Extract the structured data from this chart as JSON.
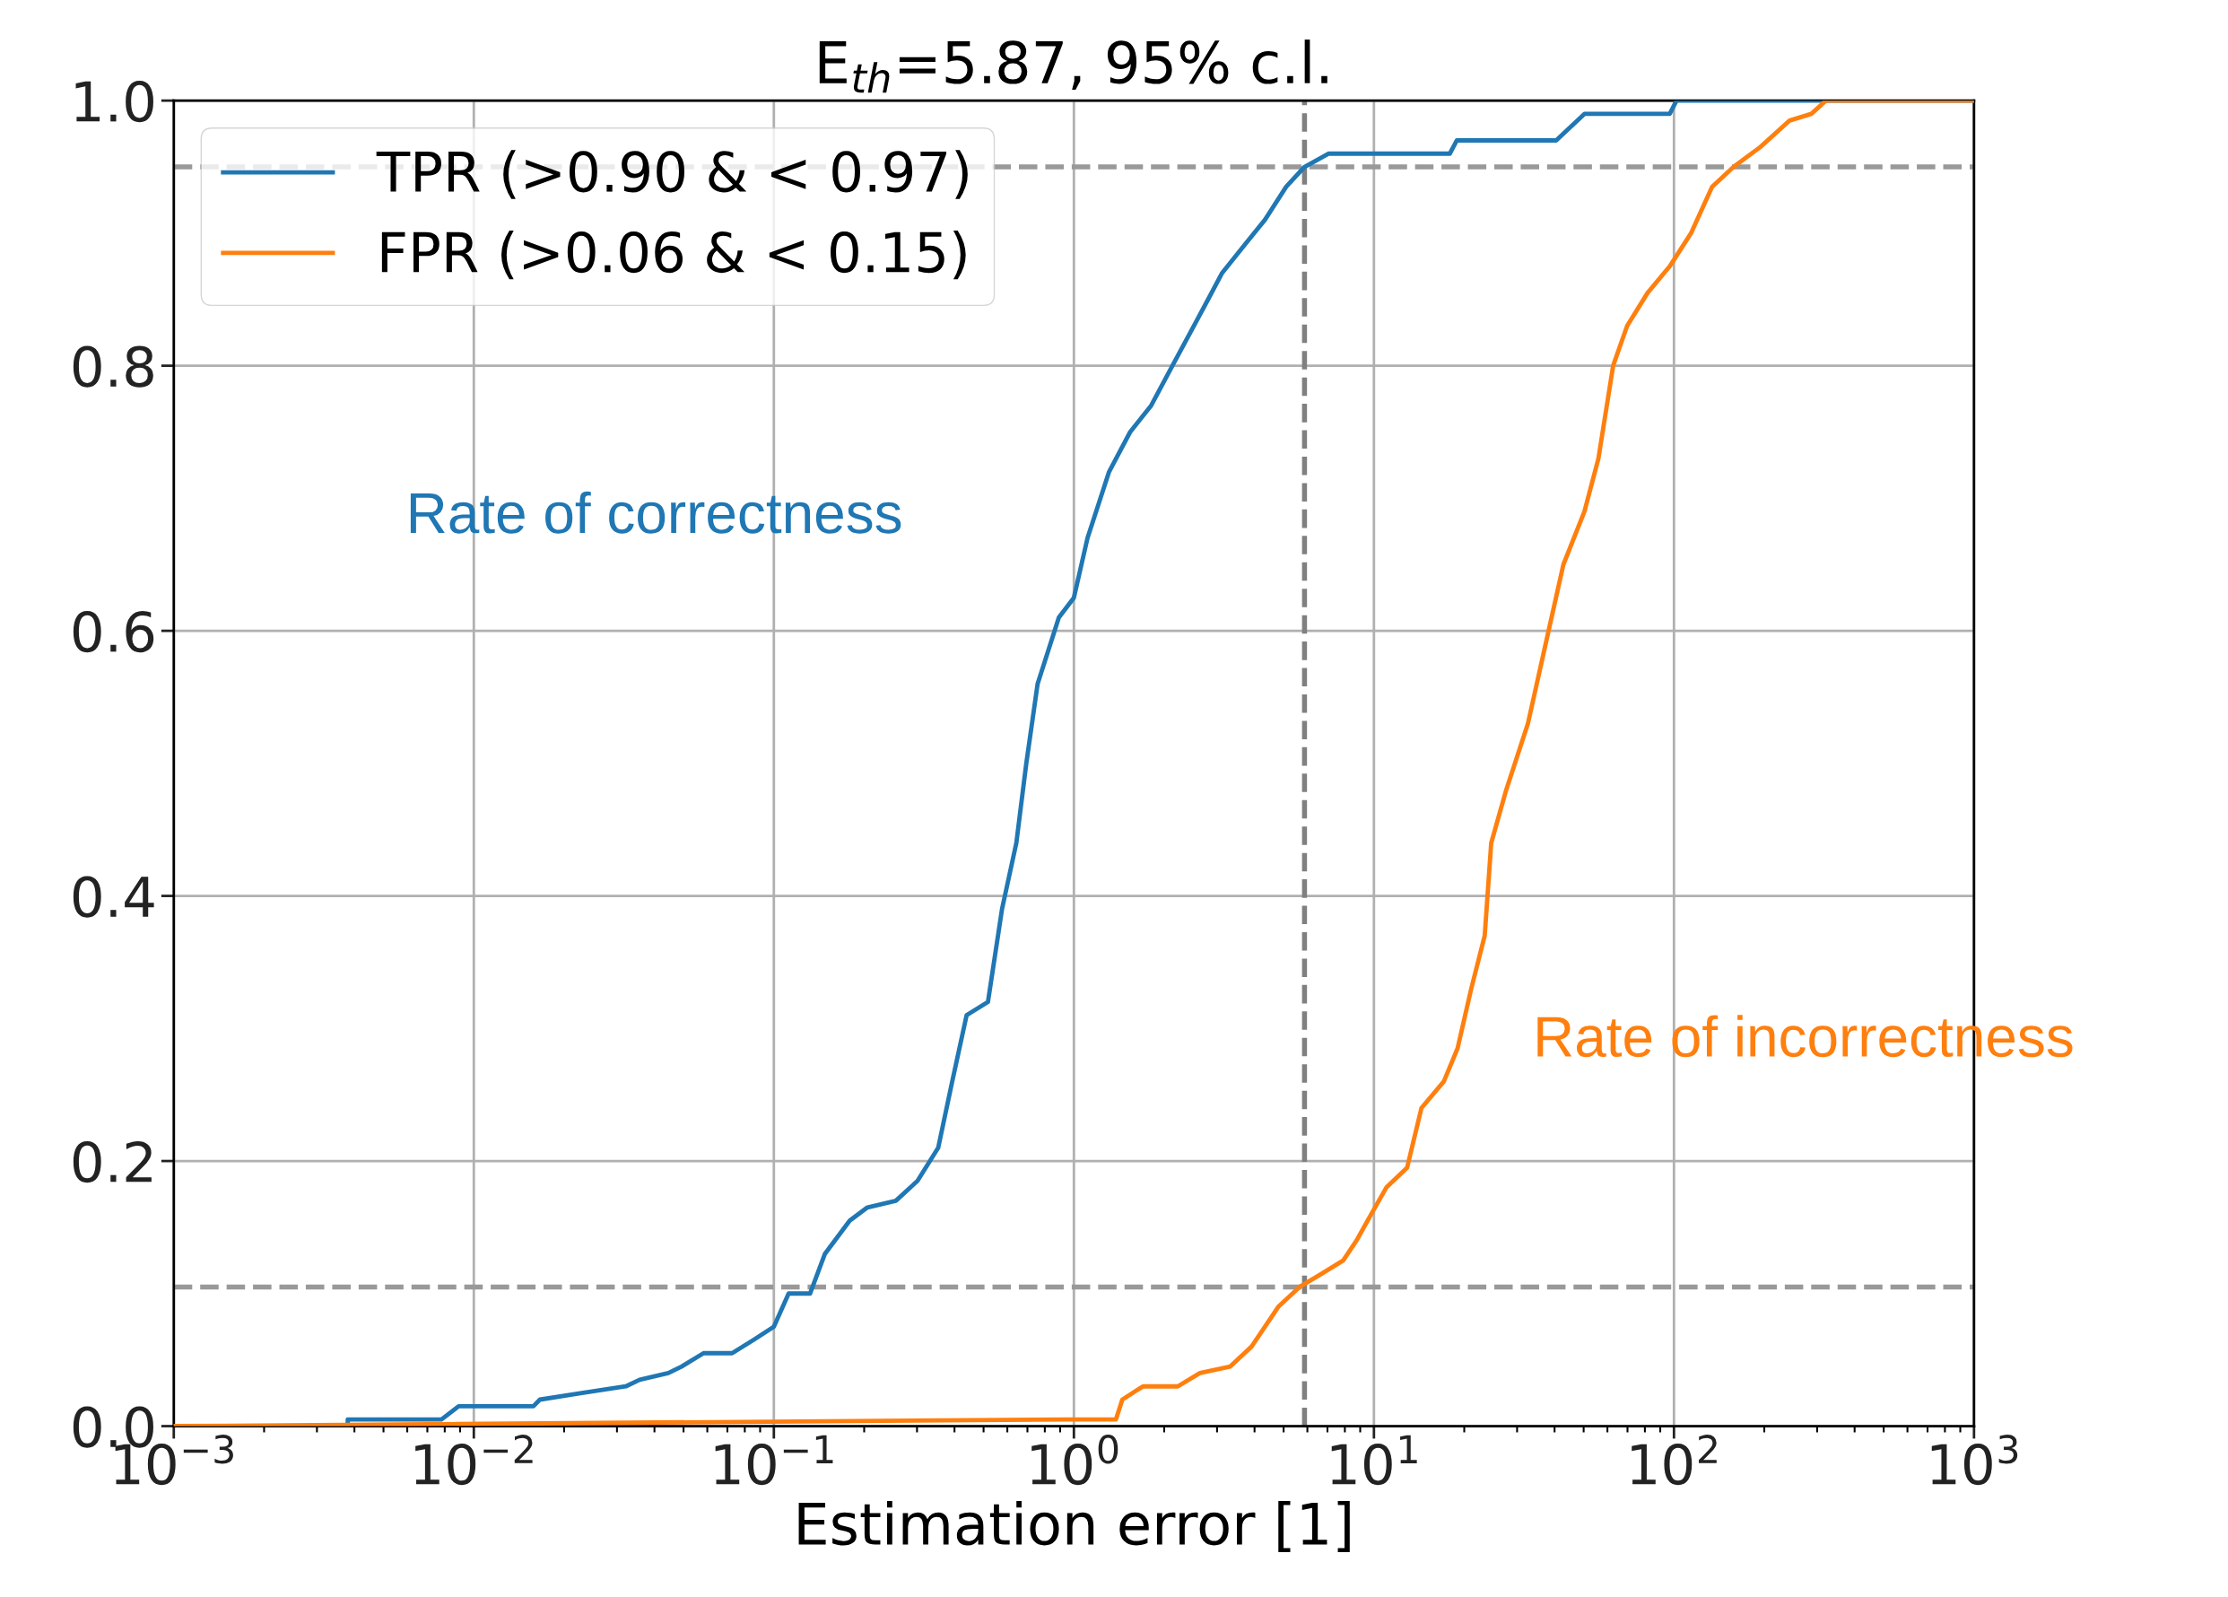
{
  "chart_data": {
    "type": "line",
    "title": "E$_{th}$=5.87, 95% c.l.",
    "xlabel": "Estimation error [1]",
    "log": "x",
    "grid": true,
    "legend": "top left",
    "xlim": [
      0.001,
      1000
    ],
    "ylim": [
      0,
      1.0
    ],
    "xticks": [
      {
        "value": 0.001,
        "label": "10$^{−3}$"
      },
      {
        "value": 0.01,
        "label": "10$^{−2}$"
      },
      {
        "value": 0.1,
        "label": "10$^{−1}$"
      },
      {
        "value": 1,
        "label": "10$^{0}$"
      },
      {
        "value": 10,
        "label": "10$^{1}$"
      },
      {
        "value": 100,
        "label": "10$^{2}$"
      },
      {
        "value": 1000,
        "label": "10$^{3}$"
      }
    ],
    "yticks": [
      {
        "value": 0,
        "label": "0.0"
      },
      {
        "value": 0.2,
        "label": "0.2"
      },
      {
        "value": 0.4,
        "label": "0.4"
      },
      {
        "value": 0.6,
        "label": "0.6"
      },
      {
        "value": 0.8,
        "label": "0.8"
      },
      {
        "value": 1.0,
        "label": "1.0"
      }
    ],
    "series": [
      {
        "name": "TPR (>0.90 & < 0.97)",
        "color": "#1f77b4",
        "x": [
          0.001,
          0.0038,
          0.0038,
          0.0078,
          0.0089,
          0.0158,
          0.0166,
          0.0229,
          0.0321,
          0.0357,
          0.0445,
          0.0493,
          0.0583,
          0.0726,
          0.0855,
          0.1,
          0.112,
          0.132,
          0.148,
          0.179,
          0.205,
          0.255,
          0.301,
          0.353,
          0.393,
          0.439,
          0.517,
          0.576,
          0.643,
          0.694,
          0.757,
          0.891,
          1.0,
          1.11,
          1.31,
          1.54,
          1.81,
          2.13,
          2.51,
          2.8,
          3.12,
          3.67,
          4.33,
          5.1,
          5.87,
          7.07,
          17.9,
          18.9,
          40.5,
          50.3,
          96.8,
          102,
          1000
        ],
        "values": [
          0,
          0,
          0.005,
          0.005,
          0.015,
          0.015,
          0.02,
          0.025,
          0.03,
          0.035,
          0.04,
          0.045,
          0.055,
          0.055,
          0.065,
          0.075,
          0.1,
          0.1,
          0.13,
          0.155,
          0.165,
          0.17,
          0.185,
          0.21,
          0.26,
          0.31,
          0.32,
          0.39,
          0.44,
          0.5,
          0.56,
          0.61,
          0.625,
          0.67,
          0.72,
          0.75,
          0.77,
          0.8,
          0.83,
          0.85,
          0.87,
          0.89,
          0.91,
          0.935,
          0.95,
          0.96,
          0.96,
          0.97,
          0.97,
          0.99,
          0.99,
          1.0,
          1.0
        ]
      },
      {
        "name": "FPR (>0.06 & < 0.15)",
        "color": "#ff7f0e",
        "x": [
          0.001,
          0.94,
          1.38,
          1.45,
          1.7,
          2.22,
          2.63,
          3.32,
          3.91,
          4.8,
          5.65,
          6.7,
          7.9,
          8.75,
          9.8,
          11.0,
          12.9,
          14.4,
          17.1,
          19.0,
          21.1,
          23.4,
          24.6,
          27.6,
          32.6,
          38.2,
          42.8,
          50.3,
          56.0,
          62.7,
          69.8,
          81.7,
          96.8,
          114,
          134,
          158,
          194,
          243,
          287,
          321,
          1000
        ],
        "values": [
          0,
          0.005,
          0.005,
          0.02,
          0.03,
          0.03,
          0.04,
          0.045,
          0.06,
          0.09,
          0.105,
          0.115,
          0.125,
          0.14,
          0.16,
          0.18,
          0.195,
          0.24,
          0.26,
          0.285,
          0.33,
          0.37,
          0.44,
          0.48,
          0.53,
          0.6,
          0.65,
          0.69,
          0.73,
          0.8,
          0.83,
          0.855,
          0.875,
          0.9,
          0.935,
          0.95,
          0.965,
          0.985,
          0.99,
          1.0,
          1.0
        ]
      }
    ],
    "ref_lines": [
      {
        "axis": "y",
        "value": 0.95,
        "color": "#999999",
        "line_style": "dashed"
      },
      {
        "axis": "y",
        "value": 0.105,
        "color": "#999999",
        "line_style": "dashed"
      },
      {
        "axis": "x",
        "value": 5.87,
        "color": "#808080",
        "line_style": "dashed"
      }
    ],
    "annotations": [
      "Rate of correctness",
      "Rate of incorrectness"
    ]
  }
}
